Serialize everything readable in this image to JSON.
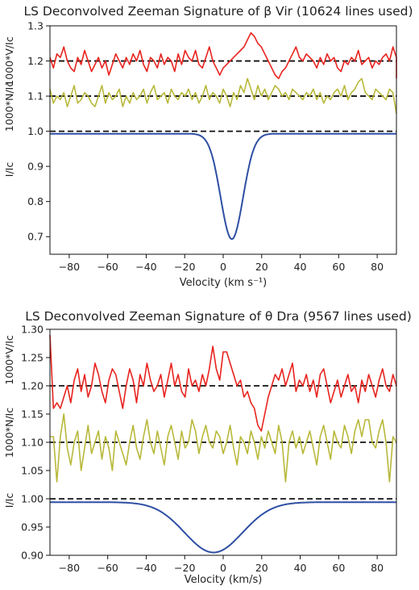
{
  "chart_data": [
    {
      "type": "line",
      "title": "LS Deconvolved Zeeman Signature of β Vir (10624 lines used)",
      "xlabel": "Velocity (km s⁻¹)",
      "ylabels": [
        "1000*V/Ic",
        "1000*N/Ic",
        "I/Ic"
      ],
      "xlim": [
        -90,
        90
      ],
      "ylim": [
        0.65,
        1.3
      ],
      "xticks": [
        -80,
        -60,
        -40,
        -20,
        0,
        20,
        40,
        60,
        80
      ],
      "yticks": [
        0.7,
        0.8,
        0.9,
        1.0,
        1.1,
        1.2,
        1.3
      ],
      "reference_lines": [
        1.0,
        1.1,
        1.2
      ],
      "grid": false,
      "colors": {
        "V": "#e8231e",
        "N": "#b8b83a",
        "I": "#2f4fa3",
        "ref": "#111111"
      },
      "profile": {
        "center": 4.5,
        "depth": 0.3,
        "sigma": 5.8,
        "continuum": 0.993
      },
      "series": [
        {
          "key": "V",
          "x_start": -90,
          "x_step": 1.8,
          "values": [
            1.21,
            1.18,
            1.22,
            1.21,
            1.24,
            1.2,
            1.18,
            1.17,
            1.21,
            1.19,
            1.23,
            1.2,
            1.17,
            1.19,
            1.21,
            1.18,
            1.2,
            1.16,
            1.19,
            1.22,
            1.2,
            1.18,
            1.21,
            1.19,
            1.22,
            1.2,
            1.23,
            1.19,
            1.17,
            1.21,
            1.2,
            1.18,
            1.22,
            1.19,
            1.21,
            1.2,
            1.17,
            1.22,
            1.19,
            1.23,
            1.21,
            1.2,
            1.23,
            1.19,
            1.18,
            1.21,
            1.24,
            1.2,
            1.18,
            1.16,
            1.18,
            1.19,
            1.2,
            1.21,
            1.22,
            1.23,
            1.24,
            1.26,
            1.28,
            1.27,
            1.25,
            1.24,
            1.22,
            1.2,
            1.18,
            1.16,
            1.15,
            1.17,
            1.18,
            1.2,
            1.22,
            1.24,
            1.21,
            1.2,
            1.22,
            1.21,
            1.2,
            1.18,
            1.21,
            1.19,
            1.22,
            1.2,
            1.21,
            1.18,
            1.17,
            1.2,
            1.19,
            1.21,
            1.2,
            1.23,
            1.19,
            1.2,
            1.21,
            1.18,
            1.2,
            1.19,
            1.21,
            1.22,
            1.2,
            1.24,
            1.21,
            1.15
          ]
        },
        {
          "key": "N",
          "x_start": -90,
          "x_step": 1.8,
          "values": [
            1.12,
            1.08,
            1.1,
            1.09,
            1.11,
            1.07,
            1.1,
            1.13,
            1.08,
            1.09,
            1.11,
            1.1,
            1.08,
            1.07,
            1.1,
            1.13,
            1.08,
            1.11,
            1.09,
            1.1,
            1.12,
            1.07,
            1.1,
            1.08,
            1.11,
            1.09,
            1.1,
            1.12,
            1.08,
            1.11,
            1.13,
            1.09,
            1.1,
            1.11,
            1.08,
            1.12,
            1.1,
            1.09,
            1.11,
            1.1,
            1.12,
            1.09,
            1.11,
            1.08,
            1.1,
            1.13,
            1.09,
            1.11,
            1.1,
            1.08,
            1.12,
            1.1,
            1.07,
            1.11,
            1.09,
            1.13,
            1.11,
            1.15,
            1.12,
            1.09,
            1.13,
            1.1,
            1.12,
            1.09,
            1.11,
            1.13,
            1.12,
            1.1,
            1.11,
            1.09,
            1.12,
            1.11,
            1.1,
            1.09,
            1.11,
            1.1,
            1.12,
            1.09,
            1.11,
            1.08,
            1.1,
            1.09,
            1.11,
            1.12,
            1.1,
            1.13,
            1.09,
            1.11,
            1.12,
            1.14,
            1.15,
            1.11,
            1.1,
            1.09,
            1.12,
            1.11,
            1.1,
            1.09,
            1.12,
            1.11,
            1.05
          ]
        }
      ]
    },
    {
      "type": "line",
      "title": "LS Deconvolved Zeeman Signature of θ Dra (9567 lines used)",
      "xlabel": "Velocity (km/s)",
      "ylabels": [
        "1000*V/Ic",
        "1000*N/Ic",
        "I/Ic"
      ],
      "xlim": [
        -90,
        90
      ],
      "ylim": [
        0.9,
        1.3
      ],
      "xticks": [
        -80,
        -60,
        -40,
        -20,
        0,
        20,
        40,
        60,
        80
      ],
      "yticks": [
        0.9,
        0.95,
        1.0,
        1.05,
        1.1,
        1.15,
        1.2,
        1.25,
        1.3
      ],
      "reference_lines": [
        1.0,
        1.1,
        1.2
      ],
      "grid": false,
      "colors": {
        "V": "#e8231e",
        "N": "#b8b83a",
        "I": "#2f4fa3",
        "ref": "#111111"
      },
      "profile": {
        "center": -5,
        "depth": 0.089,
        "sigma": 15,
        "continuum": 0.994
      },
      "series": [
        {
          "key": "V",
          "x_start": -90,
          "x_step": 1.8,
          "values": [
            1.29,
            1.16,
            1.17,
            1.16,
            1.18,
            1.2,
            1.17,
            1.21,
            1.23,
            1.19,
            1.22,
            1.18,
            1.2,
            1.24,
            1.22,
            1.19,
            1.17,
            1.21,
            1.23,
            1.22,
            1.19,
            1.16,
            1.2,
            1.23,
            1.21,
            1.17,
            1.22,
            1.2,
            1.24,
            1.21,
            1.19,
            1.2,
            1.22,
            1.18,
            1.21,
            1.24,
            1.2,
            1.22,
            1.19,
            1.18,
            1.23,
            1.2,
            1.21,
            1.19,
            1.22,
            1.2,
            1.23,
            1.27,
            1.23,
            1.21,
            1.26,
            1.26,
            1.24,
            1.22,
            1.2,
            1.21,
            1.18,
            1.19,
            1.17,
            1.16,
            1.13,
            1.12,
            1.15,
            1.18,
            1.2,
            1.22,
            1.21,
            1.23,
            1.2,
            1.22,
            1.24,
            1.19,
            1.21,
            1.2,
            1.22,
            1.19,
            1.21,
            1.18,
            1.22,
            1.23,
            1.2,
            1.17,
            1.19,
            1.21,
            1.18,
            1.2,
            1.22,
            1.19,
            1.2,
            1.17,
            1.21,
            1.19,
            1.22,
            1.2,
            1.18,
            1.21,
            1.23,
            1.2,
            1.19,
            1.22,
            1.2
          ]
        },
        {
          "key": "N",
          "x_start": -90,
          "x_step": 1.8,
          "values": [
            1.11,
            1.11,
            1.03,
            1.11,
            1.15,
            1.09,
            1.06,
            1.1,
            1.12,
            1.05,
            1.09,
            1.13,
            1.08,
            1.1,
            1.12,
            1.07,
            1.11,
            1.09,
            1.05,
            1.12,
            1.1,
            1.08,
            1.06,
            1.1,
            1.13,
            1.09,
            1.07,
            1.11,
            1.14,
            1.1,
            1.08,
            1.12,
            1.09,
            1.06,
            1.11,
            1.13,
            1.1,
            1.07,
            1.12,
            1.09,
            1.1,
            1.14,
            1.12,
            1.08,
            1.11,
            1.13,
            1.1,
            1.09,
            1.12,
            1.11,
            1.08,
            1.1,
            1.13,
            1.09,
            1.06,
            1.11,
            1.1,
            1.08,
            1.12,
            1.1,
            1.07,
            1.11,
            1.09,
            1.12,
            1.1,
            1.08,
            1.13,
            1.1,
            1.03,
            1.1,
            1.12,
            1.09,
            1.11,
            1.08,
            1.1,
            1.12,
            1.09,
            1.06,
            1.11,
            1.13,
            1.1,
            1.07,
            1.12,
            1.1,
            1.09,
            1.13,
            1.11,
            1.08,
            1.12,
            1.14,
            1.11,
            1.14,
            1.14,
            1.1,
            1.09,
            1.12,
            1.14,
            1.1,
            1.03,
            1.11,
            1.1
          ]
        }
      ]
    }
  ]
}
